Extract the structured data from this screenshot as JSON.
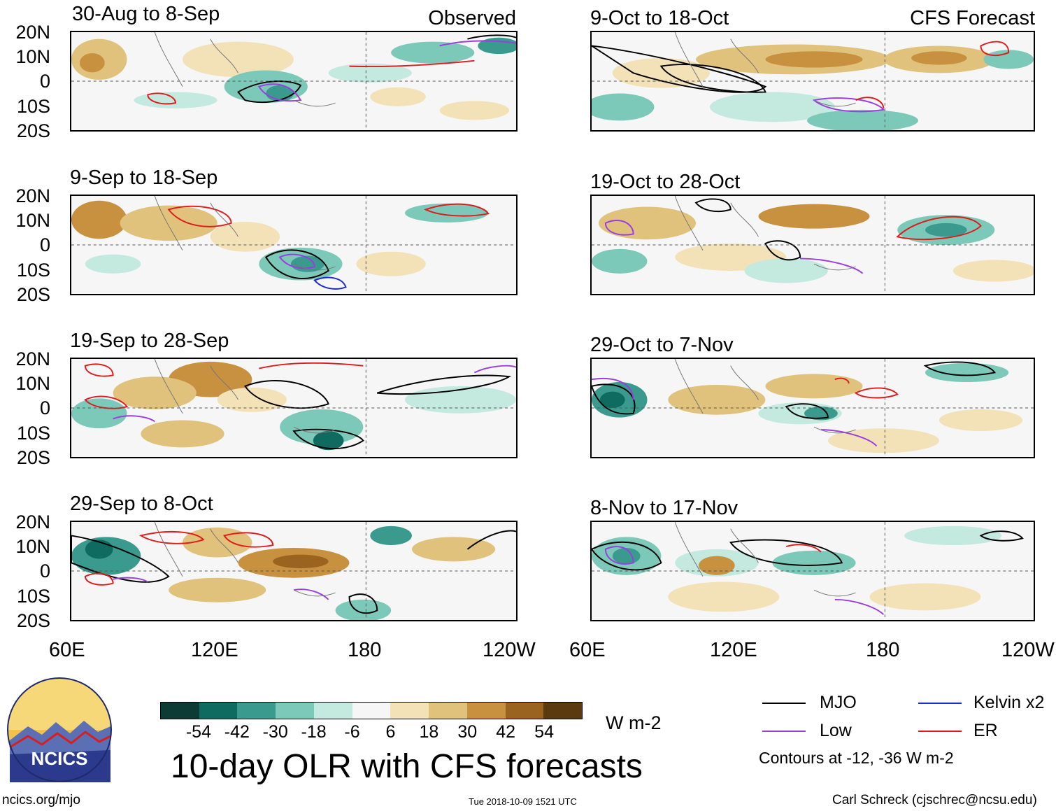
{
  "panels_left": [
    {
      "title": "30-Aug to 8-Sep",
      "tag": "Observed"
    },
    {
      "title": "9-Sep to 18-Sep",
      "tag": ""
    },
    {
      "title": "19-Sep to 28-Sep",
      "tag": ""
    },
    {
      "title": "29-Sep to 8-Oct",
      "tag": ""
    }
  ],
  "panels_right": [
    {
      "title": "9-Oct to 18-Oct",
      "tag": "CFS Forecast"
    },
    {
      "title": "19-Oct to 28-Oct",
      "tag": ""
    },
    {
      "title": "29-Oct to 7-Nov",
      "tag": ""
    },
    {
      "title": "8-Nov to 17-Nov",
      "tag": ""
    }
  ],
  "lat_labels": [
    "20N",
    "10N",
    "0",
    "10S",
    "20S"
  ],
  "lon_labels": [
    "60E",
    "120E",
    "180",
    "120W"
  ],
  "colorbar": {
    "colors": [
      "#0b3b34",
      "#0f6a60",
      "#3a9a8e",
      "#7cc9b9",
      "#c4e9de",
      "#f6f6f6",
      "#f3e2b8",
      "#e0c27c",
      "#c8913f",
      "#9a6420",
      "#5c3a10"
    ],
    "labels": [
      "-54",
      "-42",
      "-30",
      "-18",
      "-6",
      "6",
      "18",
      "30",
      "42",
      "54"
    ],
    "units": "W m-2"
  },
  "main_title": "10-day OLR with CFS forecasts",
  "legend": {
    "items": [
      {
        "label": "MJO",
        "color": "#000000"
      },
      {
        "label": "Kelvin x2",
        "color": "#1a2ad6"
      },
      {
        "label": "Low",
        "color": "#9a3ee0"
      },
      {
        "label": "ER",
        "color": "#e01b1b"
      }
    ],
    "contours": "Contours at -12, -36 W m-2"
  },
  "logo_text": "NCICS",
  "footer": {
    "left": "ncics.org/mjo",
    "center": "Tue 2018-10-09 1521 UTC",
    "right": "Carl Schreck (cjschrec@ncsu.edu)"
  }
}
